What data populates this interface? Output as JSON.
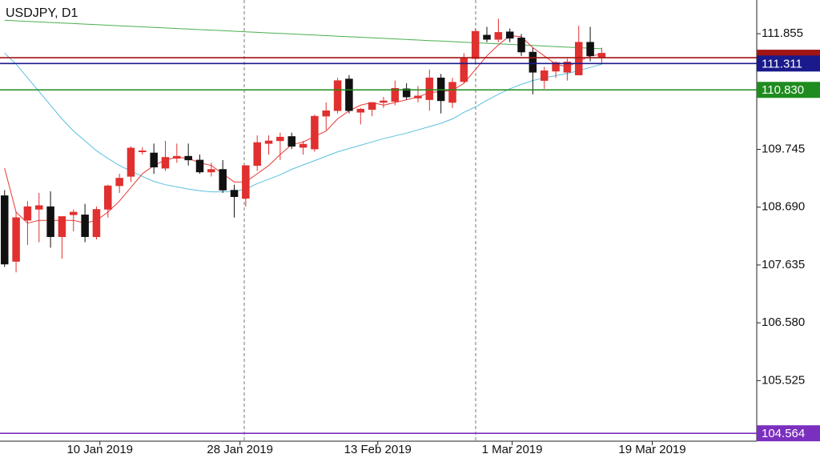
{
  "chart_data": {
    "type": "candlestick",
    "title": "USDJPY, D1",
    "ylim": [
      104.42,
      112.47
    ],
    "yticks": [
      111.855,
      109.745,
      {
        "value": 108.69,
        "label": "108.690"
      },
      107.635,
      {
        "value": 106.58,
        "label": "106.580"
      },
      105.525
    ],
    "xlim": [
      -0.4,
      65.5
    ],
    "xticks": [
      {
        "value": 8.3,
        "label": "10 Jan 2019"
      },
      {
        "value": 20.5,
        "label": "28 Jan 2019"
      },
      {
        "value": 32.5,
        "label": "13 Feb 2019"
      },
      {
        "value": 44.2,
        "label": "1 Mar 2019"
      },
      {
        "value": 56.4,
        "label": "19 Mar 2019"
      }
    ],
    "up_color": "#e0302f",
    "down_color": "#111111",
    "ohlc": {
      "open": [
        108.9,
        107.7,
        108.45,
        108.65,
        108.7,
        108.15,
        108.55,
        108.55,
        108.15,
        108.65,
        109.08,
        109.25,
        109.7,
        109.68,
        109.4,
        109.58,
        109.62,
        109.55,
        109.33,
        109.38,
        109.0,
        108.85,
        109.45,
        109.85,
        109.9,
        109.98,
        109.78,
        109.75,
        110.35,
        110.45,
        111.03,
        110.42,
        110.47,
        110.6,
        110.62,
        110.85,
        110.68,
        110.65,
        111.05,
        110.6,
        110.98,
        111.4,
        111.83,
        111.75,
        111.89,
        111.78,
        111.52,
        111.0,
        111.17,
        111.15,
        111.1,
        111.7,
        111.43
      ],
      "high": [
        109.0,
        108.6,
        108.8,
        108.95,
        108.98,
        108.52,
        108.65,
        108.75,
        108.7,
        109.1,
        109.3,
        109.8,
        109.78,
        109.85,
        109.9,
        109.85,
        109.85,
        109.65,
        109.5,
        109.55,
        109.1,
        109.45,
        110.0,
        110.0,
        110.05,
        110.05,
        109.9,
        110.38,
        110.6,
        111.05,
        111.1,
        110.5,
        110.6,
        110.7,
        111.0,
        110.95,
        110.9,
        111.2,
        111.12,
        111.05,
        111.5,
        111.95,
        111.98,
        112.13,
        111.95,
        111.85,
        111.6,
        111.25,
        111.35,
        111.4,
        112.0,
        111.98,
        111.6
      ],
      "low": [
        107.6,
        107.5,
        108.0,
        108.05,
        107.95,
        107.75,
        108.25,
        108.05,
        108.1,
        108.5,
        108.95,
        109.15,
        109.65,
        109.3,
        109.35,
        109.5,
        109.45,
        109.3,
        109.25,
        108.95,
        108.5,
        108.7,
        109.35,
        109.65,
        109.55,
        109.75,
        109.65,
        109.7,
        110.1,
        110.4,
        110.4,
        110.2,
        110.35,
        110.5,
        110.55,
        110.65,
        110.6,
        110.45,
        110.4,
        110.5,
        110.95,
        111.3,
        111.7,
        111.7,
        111.7,
        111.45,
        110.75,
        110.85,
        111.05,
        111.0,
        111.1,
        111.35,
        111.3
      ],
      "close": [
        107.65,
        108.5,
        108.7,
        108.72,
        108.15,
        108.52,
        108.6,
        108.15,
        108.65,
        109.08,
        109.22,
        109.77,
        109.72,
        109.42,
        109.6,
        109.62,
        109.55,
        109.33,
        109.38,
        109.0,
        108.88,
        109.45,
        109.87,
        109.9,
        109.97,
        109.8,
        109.84,
        110.35,
        110.45,
        111.0,
        110.45,
        110.48,
        110.6,
        110.63,
        110.86,
        110.7,
        110.72,
        111.05,
        110.63,
        110.97,
        111.42,
        111.9,
        111.75,
        111.88,
        111.77,
        111.52,
        111.15,
        111.18,
        111.33,
        111.34,
        111.7,
        111.45,
        111.5
      ]
    },
    "lines": [
      {
        "color": "#4caf50",
        "values": [
          112.1,
          112.09,
          112.08,
          112.07,
          112.06,
          112.05,
          112.04,
          112.03,
          112.02,
          112.01,
          112.0,
          111.99,
          111.98,
          111.97,
          111.96,
          111.95,
          111.94,
          111.93,
          111.92,
          111.91,
          111.9,
          111.89,
          111.88,
          111.87,
          111.86,
          111.85,
          111.84,
          111.83,
          111.82,
          111.81,
          111.8,
          111.79,
          111.78,
          111.77,
          111.76,
          111.75,
          111.74,
          111.73,
          111.72,
          111.71,
          111.7,
          111.69,
          111.68,
          111.67,
          111.66,
          111.65,
          111.64,
          111.63,
          111.62,
          111.61,
          111.6,
          111.59,
          111.58
        ]
      },
      {
        "color": "#5bc0de",
        "values": [
          111.5,
          111.3,
          111.05,
          110.8,
          110.55,
          110.3,
          110.08,
          109.9,
          109.72,
          109.58,
          109.45,
          109.35,
          109.25,
          109.16,
          109.1,
          109.06,
          109.02,
          108.99,
          108.97,
          108.97,
          108.98,
          109.02,
          109.12,
          109.2,
          109.28,
          109.38,
          109.46,
          109.54,
          109.62,
          109.7,
          109.76,
          109.82,
          109.88,
          109.94,
          109.99,
          110.04,
          110.1,
          110.16,
          110.22,
          110.3,
          110.42,
          110.52,
          110.64,
          110.75,
          110.85,
          110.93,
          111.0,
          111.05,
          111.09,
          111.13,
          111.18,
          111.24,
          111.3
        ]
      },
      {
        "color": "#e53935",
        "values": [
          109.4,
          108.6,
          108.4,
          108.45,
          108.45,
          108.45,
          108.45,
          108.4,
          108.45,
          108.6,
          108.8,
          109.05,
          109.3,
          109.45,
          109.55,
          109.6,
          109.58,
          109.5,
          109.45,
          109.3,
          109.15,
          109.15,
          109.3,
          109.45,
          109.65,
          109.83,
          109.88,
          109.98,
          110.08,
          110.3,
          110.45,
          110.55,
          110.6,
          110.55,
          110.6,
          110.65,
          110.7,
          110.78,
          110.8,
          110.82,
          110.95,
          111.2,
          111.45,
          111.65,
          111.82,
          111.8,
          111.6,
          111.45,
          111.3,
          111.25,
          111.35,
          111.45,
          111.48
        ]
      }
    ],
    "levels": [
      {
        "value": 111.417,
        "color": "#a31515"
      },
      {
        "value": 111.311,
        "label": "111.311",
        "color": "#1a1a8c"
      },
      {
        "value": 110.83,
        "label": "110.830",
        "color": "#1e8c1e"
      },
      {
        "value": 104.564,
        "label": "104.564",
        "color": "#7b2fbe"
      }
    ]
  }
}
